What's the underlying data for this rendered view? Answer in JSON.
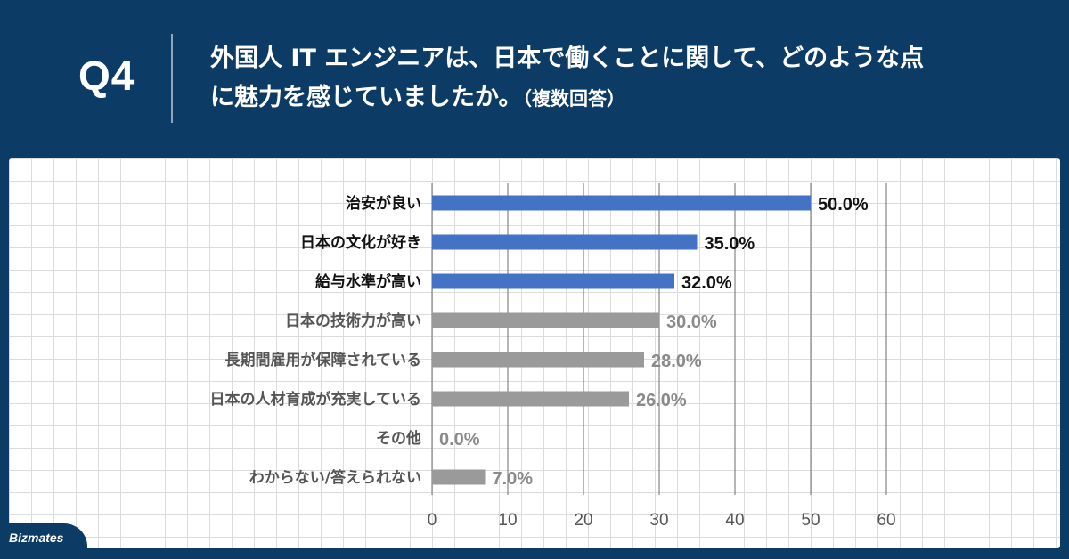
{
  "header": {
    "q_number": "Q4",
    "question_line1": "外国人 IT エンジニアは、日本で働くことに関して、どのような点",
    "question_line2": "に魅力を感じていましたか。",
    "question_note": "（複数回答）"
  },
  "logo": {
    "text": "Bizmates"
  },
  "colors": {
    "background": "#0c3b66",
    "highlight_bar": "#4472c4",
    "other_bar": "#9a9a9a",
    "highlight_text": "#111111",
    "other_text": "#8a8a8a"
  },
  "chart_data": {
    "type": "bar",
    "orientation": "horizontal",
    "title": "外国人 IT エンジニアは、日本で働くことに関して、どのような点に魅力を感じていましたか。（複数回答）",
    "categories": [
      "治安が良い",
      "日本の文化が好き",
      "給与水準が高い",
      "日本の技術力が高い",
      "長期間雇用が保障されている",
      "日本の人材育成が充実している",
      "その他",
      "わからない/答えられない"
    ],
    "values": [
      50.0,
      35.0,
      32.0,
      30.0,
      28.0,
      26.0,
      0.0,
      7.0
    ],
    "value_labels": [
      "50.0%",
      "35.0%",
      "32.0%",
      "30.0%",
      "28.0%",
      "26.0%",
      "0.0%",
      "7.0%"
    ],
    "highlighted": [
      true,
      true,
      true,
      false,
      false,
      false,
      false,
      false
    ],
    "xlim": [
      0,
      60
    ],
    "xticks": [
      0,
      10,
      20,
      30,
      40,
      50,
      60
    ],
    "xticks_labels": [
      "0",
      "10",
      "20",
      "30",
      "40",
      "50",
      "60"
    ],
    "grid": "vertical"
  }
}
